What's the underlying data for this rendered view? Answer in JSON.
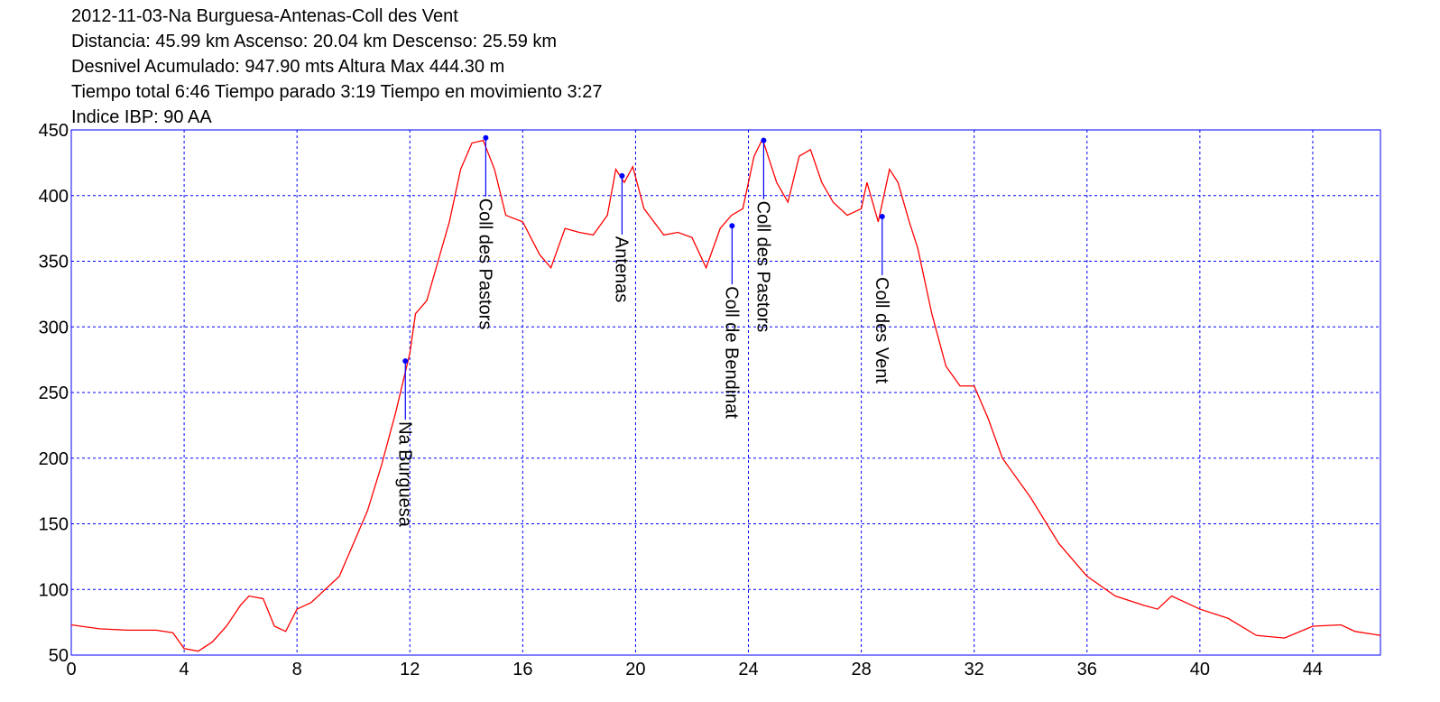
{
  "chart_data": {
    "type": "line",
    "title": "2012-11-03-Na Burguesa-Antenas-Coll des Vent",
    "subtitle": [
      "Distancia: 45.99 km Ascenso: 20.04 km Descenso: 25.59 km",
      "Desnivel Acumulado: 947.90 mts  Altura Max 444.30 m",
      "Tiempo total 6:46 Tiempo parado 3:19 Tiempo en movimiento 3:27",
      "Indice IBP: 90 AA"
    ],
    "x": [
      0,
      1,
      2,
      3,
      3.6,
      4,
      4.5,
      5,
      5.5,
      6,
      6.3,
      6.8,
      7.2,
      7.6,
      8,
      8.5,
      9,
      9.5,
      10,
      10.5,
      11,
      11.5,
      12,
      12.2,
      12.6,
      13,
      13.4,
      13.8,
      14.2,
      14.6,
      15,
      15.4,
      16,
      16.6,
      17,
      17.5,
      18,
      18.5,
      19,
      19.3,
      19.6,
      19.9,
      20.3,
      21,
      21.5,
      22,
      22.5,
      23,
      23.4,
      23.8,
      24.2,
      24.5,
      25,
      25.4,
      25.8,
      26.2,
      26.6,
      27,
      27.5,
      28,
      28.2,
      28.6,
      29,
      29.3,
      29.7,
      30,
      30.5,
      31,
      31.5,
      32,
      32.5,
      33,
      34,
      35,
      36,
      37,
      38,
      38.5,
      39,
      40,
      41,
      42,
      43,
      44,
      45,
      45.5,
      46.4
    ],
    "series": [
      {
        "name": "Altura",
        "color": "#ff0000",
        "values": [
          73,
          70,
          69,
          69,
          67,
          55,
          53,
          60,
          72,
          88,
          95,
          93,
          72,
          68,
          85,
          90,
          100,
          110,
          135,
          160,
          195,
          235,
          280,
          310,
          320,
          350,
          380,
          420,
          440,
          442,
          420,
          385,
          380,
          355,
          345,
          375,
          372,
          370,
          385,
          420,
          410,
          422,
          390,
          370,
          372,
          368,
          345,
          375,
          385,
          390,
          430,
          443,
          410,
          395,
          430,
          435,
          410,
          395,
          385,
          390,
          410,
          380,
          420,
          410,
          380,
          360,
          310,
          270,
          255,
          255,
          230,
          200,
          170,
          135,
          110,
          95,
          88,
          85,
          95,
          85,
          78,
          65,
          63,
          72,
          73,
          68,
          65
        ]
      }
    ],
    "annotations": [
      {
        "label": "Na Burguesa",
        "x": 11.84,
        "y": 274
      },
      {
        "label": "Coll des Pastors",
        "x": 14.69,
        "y": 444
      },
      {
        "label": "Antenas",
        "x": 19.52,
        "y": 415
      },
      {
        "label": "Coll de Bendinat",
        "x": 23.42,
        "y": 377
      },
      {
        "label": "Coll des Pastors",
        "x": 24.54,
        "y": 442
      },
      {
        "label": "Coll des Vent",
        "x": 28.74,
        "y": 384
      }
    ],
    "annotation_color": "#0000ff",
    "grid_color": "#0000ff",
    "xlim": [
      0,
      46.4
    ],
    "xticks": [
      0,
      4,
      8,
      12,
      16,
      20,
      24,
      28,
      32,
      36,
      40,
      44
    ],
    "ylim": [
      50,
      450
    ],
    "yticks": [
      50,
      100,
      150,
      200,
      250,
      300,
      350,
      400,
      450
    ],
    "grid": true
  }
}
